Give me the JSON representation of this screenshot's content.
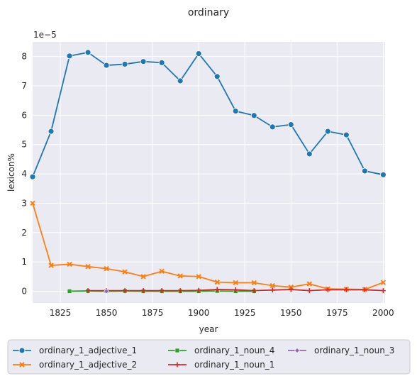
{
  "chart_data": {
    "type": "line",
    "title": "ordinary",
    "xlabel": "year",
    "ylabel": "lexicon%",
    "y_multiplier_label": "1e−5",
    "xlim": [
      1810,
      2001
    ],
    "ylim": [
      -0.4,
      8.5
    ],
    "xticks": [
      1825,
      1850,
      1875,
      1900,
      1925,
      1950,
      1975,
      2000
    ],
    "yticks": [
      0,
      1,
      2,
      3,
      4,
      5,
      6,
      7,
      8
    ],
    "grid": true,
    "legend_position": "bottom",
    "series": [
      {
        "name": "ordinary_1_adjective_1",
        "color": "#1f77b4",
        "marker": "circle",
        "x": [
          1810,
          1820,
          1830,
          1840,
          1850,
          1860,
          1870,
          1880,
          1890,
          1900,
          1910,
          1920,
          1930,
          1940,
          1950,
          1960,
          1970,
          1980,
          1990,
          2000
        ],
        "y": [
          3.9,
          5.45,
          8.02,
          8.14,
          7.7,
          7.74,
          7.83,
          7.79,
          7.17,
          8.1,
          7.32,
          6.14,
          5.99,
          5.6,
          5.68,
          4.68,
          5.45,
          5.33,
          4.1,
          3.97
        ]
      },
      {
        "name": "ordinary_1_adjective_2",
        "color": "#ff7f0e",
        "marker": "x",
        "x": [
          1810,
          1820,
          1830,
          1840,
          1850,
          1860,
          1870,
          1880,
          1890,
          1900,
          1910,
          1920,
          1930,
          1940,
          1950,
          1960,
          1970,
          1980,
          1990,
          2000
        ],
        "y": [
          3.0,
          0.88,
          0.92,
          0.84,
          0.77,
          0.66,
          0.5,
          0.68,
          0.52,
          0.5,
          0.31,
          0.29,
          0.29,
          0.19,
          0.14,
          0.25,
          0.08,
          0.07,
          0.06,
          0.3
        ]
      },
      {
        "name": "ordinary_1_noun_4",
        "color": "#2ca02c",
        "marker": "square",
        "x": [
          1830,
          1840,
          1850,
          1860,
          1870,
          1880,
          1890,
          1900,
          1910,
          1920,
          1930
        ],
        "y": [
          0.0,
          0.01,
          0.0,
          0.01,
          0.0,
          0.0,
          0.0,
          0.0,
          0.01,
          0.0,
          0.0
        ]
      },
      {
        "name": "ordinary_1_noun_1",
        "color": "#d62728",
        "marker": "plus",
        "x": [
          1840,
          1850,
          1860,
          1870,
          1880,
          1890,
          1900,
          1910,
          1920,
          1930,
          1940,
          1950,
          1960,
          1970,
          1980,
          1990,
          2000
        ],
        "y": [
          0.02,
          0.02,
          0.02,
          0.02,
          0.02,
          0.02,
          0.03,
          0.06,
          0.05,
          0.02,
          0.04,
          0.06,
          0.02,
          0.05,
          0.05,
          0.05,
          0.02
        ]
      },
      {
        "name": "ordinary_1_noun_3",
        "color": "#9467bd",
        "marker": "diamond",
        "x": [
          1850
        ],
        "y": [
          0.0
        ]
      }
    ]
  }
}
